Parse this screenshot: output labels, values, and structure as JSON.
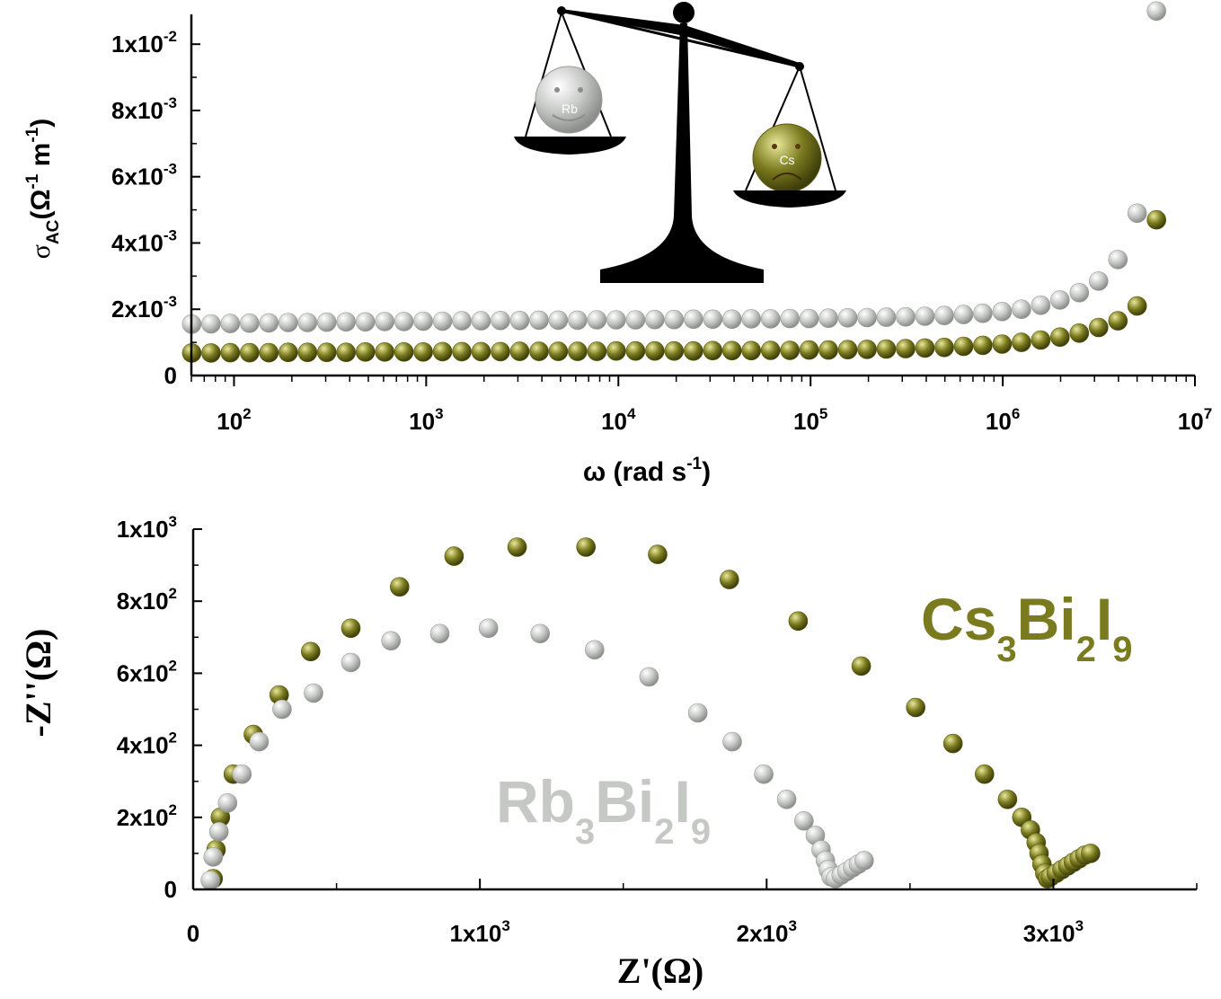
{
  "colors": {
    "cs": "#7a7a1f",
    "rb": "#c6c8c6",
    "axis": "#000000"
  },
  "chart_data": [
    {
      "id": "conductivity",
      "type": "scatter",
      "xscale": "log",
      "xlim": [
        60,
        10000000
      ],
      "ylim": [
        0,
        0.0109
      ],
      "xlabel": {
        "main": "ω (rad s",
        "sup": "-1",
        "close": ")"
      },
      "ylabel": {
        "sigma": "σ",
        "sub": "AC",
        "open": "(Ω",
        "sup1": "-1",
        "m": " m",
        "sup2": "-1",
        "close": ")"
      },
      "xticks": [
        {
          "value": 100,
          "base": "10",
          "exp": "2"
        },
        {
          "value": 1000,
          "base": "10",
          "exp": "3"
        },
        {
          "value": 10000,
          "base": "10",
          "exp": "4"
        },
        {
          "value": 100000,
          "base": "10",
          "exp": "5"
        },
        {
          "value": 1000000,
          "base": "10",
          "exp": "6"
        },
        {
          "value": 10000000,
          "base": "10",
          "exp": "7"
        }
      ],
      "yticks": [
        {
          "value": 0,
          "base": "0",
          "exp": ""
        },
        {
          "value": 0.002,
          "base": "2x10",
          "exp": "-3"
        },
        {
          "value": 0.004,
          "base": "4x10",
          "exp": "-3"
        },
        {
          "value": 0.006,
          "base": "6x10",
          "exp": "-3"
        },
        {
          "value": 0.008,
          "base": "8x10",
          "exp": "-3"
        },
        {
          "value": 0.01,
          "base": "1x10",
          "exp": "-2"
        }
      ],
      "series": [
        {
          "key": "rb",
          "log_x_start": 1.78,
          "log_x_end": 6.8,
          "y": [
            0.00155,
            0.00156,
            0.00157,
            0.00158,
            0.00159,
            0.0016,
            0.0016,
            0.00161,
            0.00162,
            0.00162,
            0.00163,
            0.00163,
            0.00164,
            0.00164,
            0.00165,
            0.00165,
            0.00166,
            0.00166,
            0.00167,
            0.00167,
            0.00167,
            0.00168,
            0.00168,
            0.00168,
            0.00169,
            0.00169,
            0.0017,
            0.0017,
            0.0017,
            0.00171,
            0.00171,
            0.00172,
            0.00172,
            0.00173,
            0.00174,
            0.00175,
            0.00176,
            0.00177,
            0.00179,
            0.00181,
            0.00184,
            0.00188,
            0.00193,
            0.002,
            0.00212,
            0.00228,
            0.0025,
            0.00285,
            0.0035,
            0.0049,
            0.011
          ]
        },
        {
          "key": "cs",
          "log_x_start": 1.78,
          "log_x_end": 6.8,
          "y": [
            0.00068,
            0.00068,
            0.00069,
            0.00069,
            0.00069,
            0.0007,
            0.0007,
            0.0007,
            0.0007,
            0.00071,
            0.00071,
            0.00071,
            0.00071,
            0.00072,
            0.00072,
            0.00072,
            0.00072,
            0.00073,
            0.00073,
            0.00073,
            0.00073,
            0.00073,
            0.00074,
            0.00074,
            0.00074,
            0.00074,
            0.00074,
            0.00075,
            0.00075,
            0.00075,
            0.00076,
            0.00076,
            0.00077,
            0.00077,
            0.00078,
            0.00079,
            0.0008,
            0.00081,
            0.00083,
            0.00085,
            0.00088,
            0.00091,
            0.00095,
            0.001,
            0.00107,
            0.00116,
            0.00128,
            0.00145,
            0.00165,
            0.0021,
            0.0047
          ]
        }
      ]
    },
    {
      "id": "nyquist",
      "type": "scatter",
      "xlim": [
        0,
        3500
      ],
      "ylim": [
        0,
        1000
      ],
      "xlabel": "Z'(Ω)",
      "ylabel": "-Z''(Ω)",
      "xticks": [
        {
          "value": 0,
          "base": "0",
          "exp": ""
        },
        {
          "value": 1000,
          "base": "1x10",
          "exp": "3"
        },
        {
          "value": 2000,
          "base": "2x10",
          "exp": "3"
        },
        {
          "value": 3000,
          "base": "3x10",
          "exp": "3"
        }
      ],
      "yticks": [
        {
          "value": 0,
          "base": "0",
          "exp": ""
        },
        {
          "value": 200,
          "base": "2x10",
          "exp": "2"
        },
        {
          "value": 400,
          "base": "4x10",
          "exp": "2"
        },
        {
          "value": 600,
          "base": "6x10",
          "exp": "2"
        },
        {
          "value": 800,
          "base": "8x10",
          "exp": "2"
        },
        {
          "value": 1000,
          "base": "1x10",
          "exp": "3"
        }
      ],
      "series": [
        {
          "key": "cs",
          "name_parts": {
            "a": "Cs",
            "s1": "3",
            "b": "Bi",
            "s2": "2",
            "c": "I",
            "s3": "9"
          },
          "points": [
            [
              70,
              30
            ],
            [
              80,
              110
            ],
            [
              95,
              200
            ],
            [
              140,
              320
            ],
            [
              210,
              430
            ],
            [
              300,
              540
            ],
            [
              410,
              660
            ],
            [
              550,
              725
            ],
            [
              720,
              840
            ],
            [
              910,
              925
            ],
            [
              1130,
              950
            ],
            [
              1370,
              950
            ],
            [
              1620,
              930
            ],
            [
              1870,
              860
            ],
            [
              2110,
              745
            ],
            [
              2330,
              620
            ],
            [
              2520,
              505
            ],
            [
              2650,
              405
            ],
            [
              2760,
              320
            ],
            [
              2840,
              250
            ],
            [
              2890,
              200
            ],
            [
              2920,
              165
            ],
            [
              2940,
              130
            ],
            [
              2950,
              100
            ],
            [
              2960,
              70
            ],
            [
              2970,
              45
            ],
            [
              2980,
              30
            ],
            [
              2990,
              35
            ],
            [
              3010,
              45
            ],
            [
              3030,
              55
            ],
            [
              3050,
              65
            ],
            [
              3070,
              75
            ],
            [
              3090,
              85
            ],
            [
              3110,
              95
            ],
            [
              3130,
              100
            ]
          ]
        },
        {
          "key": "rb",
          "name_parts": {
            "a": "Rb",
            "s1": "3",
            "b": "Bi",
            "s2": "2",
            "c": "I",
            "s3": "9"
          },
          "points": [
            [
              60,
              25
            ],
            [
              70,
              90
            ],
            [
              90,
              160
            ],
            [
              120,
              240
            ],
            [
              170,
              320
            ],
            [
              230,
              410
            ],
            [
              310,
              500
            ],
            [
              420,
              545
            ],
            [
              550,
              630
            ],
            [
              690,
              690
            ],
            [
              860,
              710
            ],
            [
              1030,
              725
            ],
            [
              1210,
              710
            ],
            [
              1400,
              665
            ],
            [
              1590,
              590
            ],
            [
              1760,
              490
            ],
            [
              1880,
              410
            ],
            [
              1990,
              320
            ],
            [
              2070,
              250
            ],
            [
              2130,
              190
            ],
            [
              2170,
              150
            ],
            [
              2190,
              110
            ],
            [
              2205,
              80
            ],
            [
              2215,
              55
            ],
            [
              2225,
              35
            ],
            [
              2240,
              30
            ],
            [
              2260,
              40
            ],
            [
              2280,
              50
            ],
            [
              2300,
              60
            ],
            [
              2320,
              70
            ],
            [
              2340,
              80
            ]
          ]
        }
      ]
    }
  ],
  "inset": {
    "rb_face": "Rb",
    "cs_face": "Cs"
  }
}
